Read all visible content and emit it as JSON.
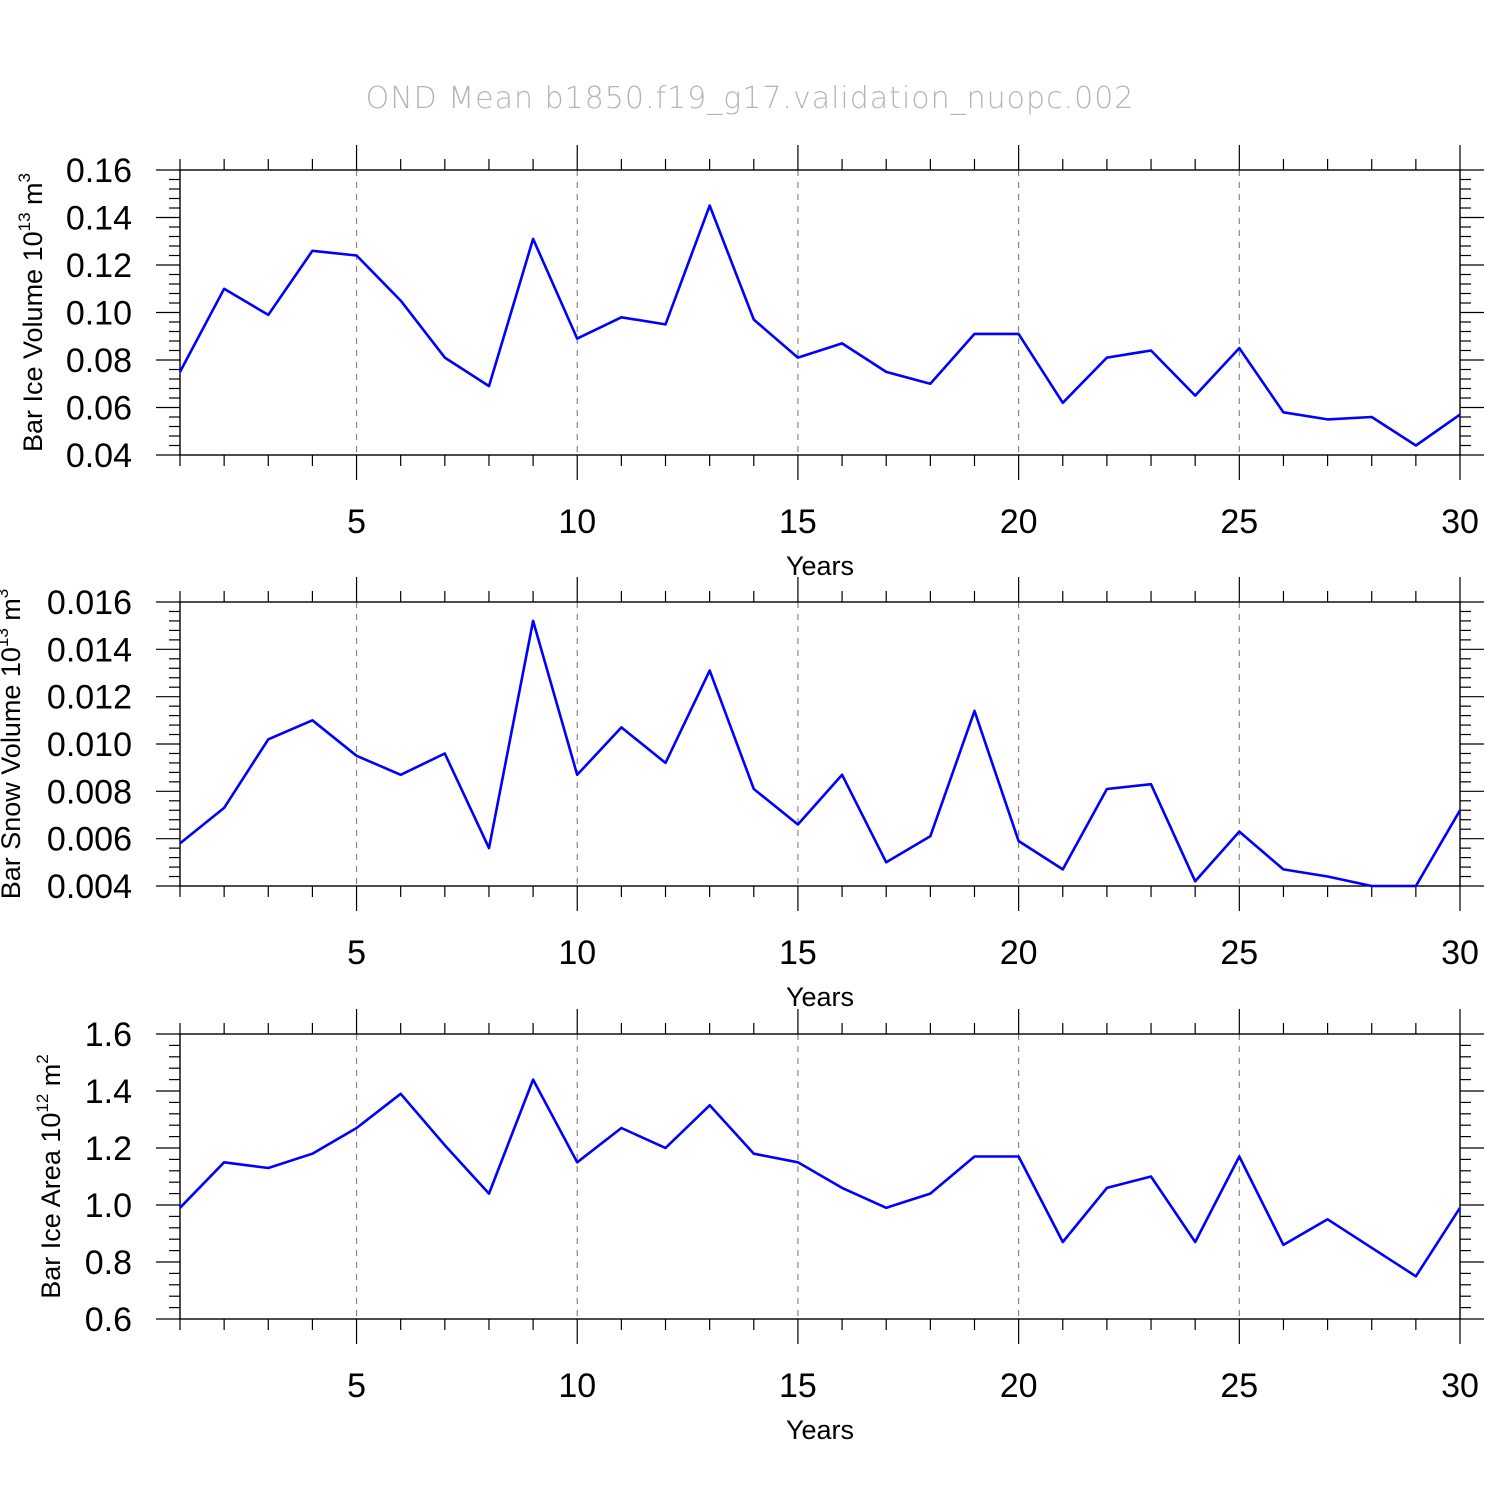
{
  "title": "OND Mean b1850.f19_g17.validation_nuopc.002",
  "series_color": "#0000ff",
  "chart_data": [
    {
      "type": "line",
      "title": "",
      "xlabel": "Years",
      "ylabel_text": "Bar Ice Volume 10",
      "ylabel_exp": "13",
      "ylabel_unit": " m",
      "ylabel_unit_exp": "3",
      "xlim": [
        1,
        30
      ],
      "ylim": [
        0.04,
        0.16
      ],
      "xticks": [
        5,
        10,
        15,
        20,
        25,
        30
      ],
      "xtick_labels": [
        "5",
        "10",
        "15",
        "20",
        "25",
        "30"
      ],
      "yticks": [
        0.04,
        0.06,
        0.08,
        0.1,
        0.12,
        0.14,
        0.16
      ],
      "ytick_labels": [
        "0.04",
        "0.06",
        "0.08",
        "0.10",
        "0.12",
        "0.14",
        "0.16"
      ],
      "grid_x": [
        5,
        10,
        15,
        20,
        25
      ],
      "x": [
        1,
        2,
        3,
        4,
        5,
        6,
        7,
        8,
        9,
        10,
        11,
        12,
        13,
        14,
        15,
        16,
        17,
        18,
        19,
        20,
        21,
        22,
        23,
        24,
        25,
        26,
        27,
        28,
        29,
        30
      ],
      "values": [
        0.075,
        0.11,
        0.099,
        0.126,
        0.124,
        0.105,
        0.081,
        0.069,
        0.131,
        0.089,
        0.098,
        0.095,
        0.145,
        0.097,
        0.081,
        0.087,
        0.075,
        0.07,
        0.091,
        0.091,
        0.062,
        0.081,
        0.084,
        0.065,
        0.085,
        0.058,
        0.055,
        0.056,
        0.044,
        0.057
      ]
    },
    {
      "type": "line",
      "title": "",
      "xlabel": "Years",
      "ylabel_text": "Bar Snow Volume 10",
      "ylabel_exp": "13",
      "ylabel_unit": " m",
      "ylabel_unit_exp": "3",
      "xlim": [
        1,
        30
      ],
      "ylim": [
        0.004,
        0.016
      ],
      "xticks": [
        5,
        10,
        15,
        20,
        25,
        30
      ],
      "xtick_labels": [
        "5",
        "10",
        "15",
        "20",
        "25",
        "30"
      ],
      "yticks": [
        0.004,
        0.006,
        0.008,
        0.01,
        0.012,
        0.014,
        0.016
      ],
      "ytick_labels": [
        "0.004",
        "0.006",
        "0.008",
        "0.010",
        "0.012",
        "0.014",
        "0.016"
      ],
      "grid_x": [
        5,
        10,
        15,
        20,
        25
      ],
      "x": [
        1,
        2,
        3,
        4,
        5,
        6,
        7,
        8,
        9,
        10,
        11,
        12,
        13,
        14,
        15,
        16,
        17,
        18,
        19,
        20,
        21,
        22,
        23,
        24,
        25,
        26,
        27,
        28,
        29,
        30
      ],
      "values": [
        0.0058,
        0.0073,
        0.0102,
        0.011,
        0.0095,
        0.0087,
        0.0096,
        0.0056,
        0.0152,
        0.0087,
        0.0107,
        0.0092,
        0.0131,
        0.0081,
        0.0066,
        0.0087,
        0.005,
        0.0061,
        0.0114,
        0.0059,
        0.0047,
        0.0081,
        0.0083,
        0.0042,
        0.0063,
        0.0047,
        0.0044,
        0.004,
        0.004,
        0.0072
      ]
    },
    {
      "type": "line",
      "title": "",
      "xlabel": "Years",
      "ylabel_text": "Bar Ice Area 10",
      "ylabel_exp": "12",
      "ylabel_unit": " m",
      "ylabel_unit_exp": "2",
      "xlim": [
        1,
        30
      ],
      "ylim": [
        0.6,
        1.6
      ],
      "xticks": [
        5,
        10,
        15,
        20,
        25,
        30
      ],
      "xtick_labels": [
        "5",
        "10",
        "15",
        "20",
        "25",
        "30"
      ],
      "yticks": [
        0.6,
        0.8,
        1.0,
        1.2,
        1.4,
        1.6
      ],
      "ytick_labels": [
        "0.6",
        "0.8",
        "1.0",
        "1.2",
        "1.4",
        "1.6"
      ],
      "grid_x": [
        5,
        10,
        15,
        20,
        25
      ],
      "x": [
        1,
        2,
        3,
        4,
        5,
        6,
        7,
        8,
        9,
        10,
        11,
        12,
        13,
        14,
        15,
        16,
        17,
        18,
        19,
        20,
        21,
        22,
        23,
        24,
        25,
        26,
        27,
        28,
        29,
        30
      ],
      "values": [
        0.99,
        1.15,
        1.13,
        1.18,
        1.27,
        1.39,
        1.21,
        1.04,
        1.44,
        1.15,
        1.27,
        1.2,
        1.35,
        1.18,
        1.15,
        1.06,
        0.99,
        1.04,
        1.17,
        1.17,
        0.87,
        1.06,
        1.1,
        0.87,
        1.17,
        0.86,
        0.95,
        0.85,
        0.75,
        0.99
      ]
    }
  ]
}
